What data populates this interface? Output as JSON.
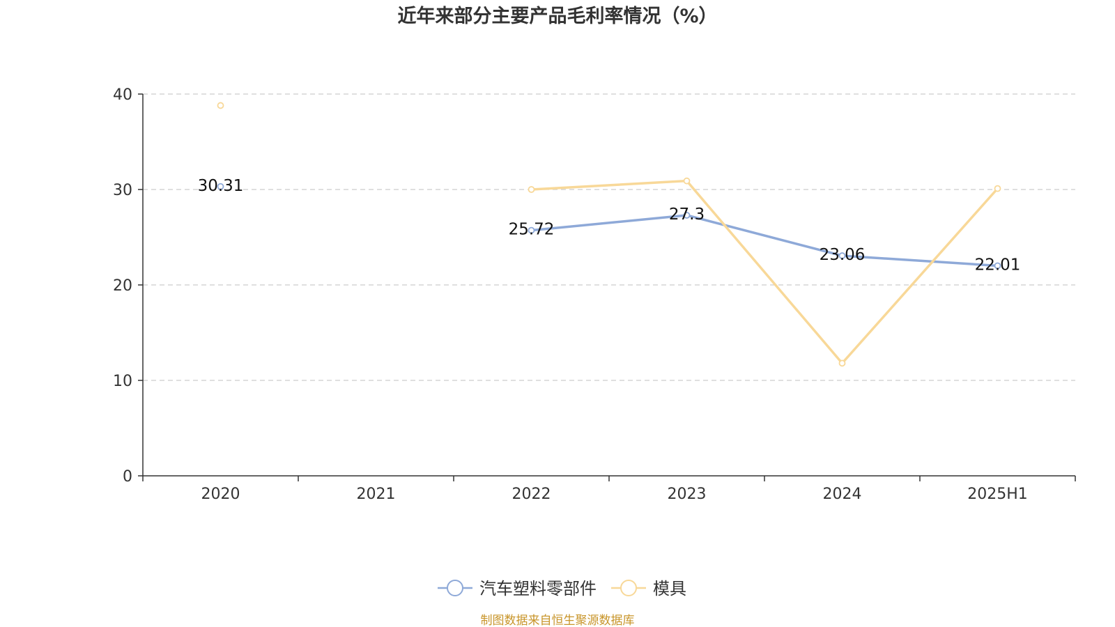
{
  "chart_data": {
    "type": "line",
    "title": "近年来部分主要产品毛利率情况（%）",
    "xlabel": "",
    "ylabel": "",
    "categories": [
      "2020",
      "2021",
      "2022",
      "2023",
      "2024",
      "2025H1"
    ],
    "ylim": [
      0,
      40
    ],
    "yticks": [
      0,
      10,
      20,
      30,
      40
    ],
    "grid": true,
    "legend_position": "bottom",
    "series": [
      {
        "name": "汽车塑料零部件",
        "color": "#8ea9d8",
        "values": [
          30.31,
          null,
          25.72,
          27.3,
          23.06,
          22.01
        ],
        "labels": [
          "30.31",
          "",
          "25.72",
          "27.3",
          "23.06",
          "22.01"
        ]
      },
      {
        "name": "模具",
        "color": "#f8d898",
        "values": [
          38.8,
          null,
          30.0,
          30.9,
          11.8,
          30.1
        ],
        "labels": [
          "",
          "",
          "",
          "",
          "",
          ""
        ]
      }
    ],
    "source": "制图数据来自恒生聚源数据库"
  }
}
